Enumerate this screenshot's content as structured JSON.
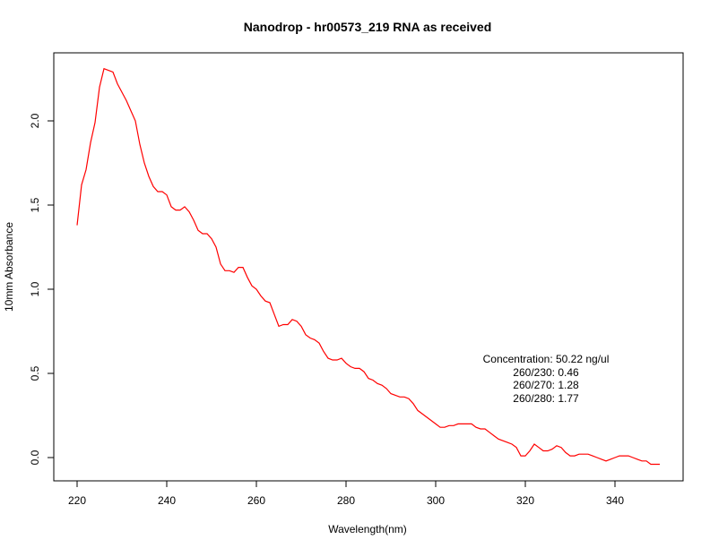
{
  "chart_data": {
    "type": "line",
    "title": "Nanodrop - hr00573_219 RNA as received",
    "xlabel": "Wavelength(nm)",
    "ylabel": "10mm Absorbance",
    "xlim": [
      220,
      350
    ],
    "ylim": [
      -0.05,
      2.35
    ],
    "x_ticks": [
      220,
      240,
      260,
      280,
      300,
      320,
      340
    ],
    "y_ticks": [
      0.0,
      0.5,
      1.0,
      1.5,
      2.0
    ],
    "x_tick_labels": [
      "220",
      "240",
      "260",
      "280",
      "300",
      "320",
      "340"
    ],
    "y_tick_labels": [
      "0.0",
      "0.5",
      "1.0",
      "1.5",
      "2.0"
    ],
    "grid": false,
    "series": [
      {
        "color": "#ff0000",
        "x": [
          220,
          221,
          222,
          223,
          224,
          225,
          226,
          227,
          228,
          229,
          230,
          231,
          232,
          233,
          234,
          235,
          236,
          237,
          238,
          239,
          240,
          241,
          242,
          243,
          244,
          245,
          246,
          247,
          248,
          249,
          250,
          251,
          252,
          253,
          254,
          255,
          256,
          257,
          258,
          259,
          260,
          261,
          262,
          263,
          264,
          265,
          266,
          267,
          268,
          269,
          270,
          271,
          272,
          273,
          274,
          275,
          276,
          277,
          278,
          279,
          280,
          281,
          282,
          283,
          284,
          285,
          286,
          287,
          288,
          289,
          290,
          291,
          292,
          293,
          294,
          295,
          296,
          297,
          298,
          299,
          300,
          301,
          302,
          303,
          304,
          305,
          306,
          307,
          308,
          309,
          310,
          311,
          312,
          313,
          314,
          315,
          316,
          317,
          318,
          319,
          320,
          321,
          322,
          323,
          324,
          325,
          326,
          327,
          328,
          329,
          330,
          331,
          332,
          333,
          334,
          335,
          336,
          337,
          338,
          339,
          340,
          341,
          342,
          343,
          344,
          345,
          346,
          347,
          348,
          349,
          350
        ],
        "y": [
          1.38,
          1.62,
          1.71,
          1.87,
          1.99,
          2.2,
          2.31,
          2.3,
          2.29,
          2.22,
          2.17,
          2.12,
          2.06,
          2.0,
          1.86,
          1.75,
          1.67,
          1.61,
          1.58,
          1.58,
          1.56,
          1.49,
          1.47,
          1.47,
          1.49,
          1.46,
          1.41,
          1.35,
          1.33,
          1.33,
          1.3,
          1.25,
          1.15,
          1.11,
          1.11,
          1.1,
          1.13,
          1.13,
          1.07,
          1.02,
          1.0,
          0.96,
          0.93,
          0.92,
          0.85,
          0.78,
          0.79,
          0.79,
          0.82,
          0.81,
          0.78,
          0.73,
          0.71,
          0.7,
          0.68,
          0.63,
          0.59,
          0.58,
          0.58,
          0.59,
          0.56,
          0.54,
          0.53,
          0.53,
          0.51,
          0.47,
          0.46,
          0.44,
          0.43,
          0.41,
          0.38,
          0.37,
          0.36,
          0.36,
          0.35,
          0.32,
          0.28,
          0.26,
          0.24,
          0.22,
          0.2,
          0.18,
          0.18,
          0.19,
          0.19,
          0.2,
          0.2,
          0.2,
          0.2,
          0.18,
          0.17,
          0.17,
          0.15,
          0.13,
          0.11,
          0.1,
          0.09,
          0.08,
          0.06,
          0.01,
          0.01,
          0.04,
          0.08,
          0.06,
          0.04,
          0.04,
          0.05,
          0.07,
          0.06,
          0.03,
          0.01,
          0.01,
          0.02,
          0.02,
          0.02,
          0.01,
          0.0,
          -0.01,
          -0.02,
          -0.01,
          0.0,
          0.01,
          0.01,
          0.01,
          0.0,
          -0.01,
          -0.02,
          -0.02,
          -0.04,
          -0.04,
          -0.04
        ]
      }
    ],
    "annotations": [
      "Concentration: 50.22 ng/ul",
      "260/230: 0.46",
      "260/270: 1.28",
      "260/280: 1.77"
    ]
  }
}
